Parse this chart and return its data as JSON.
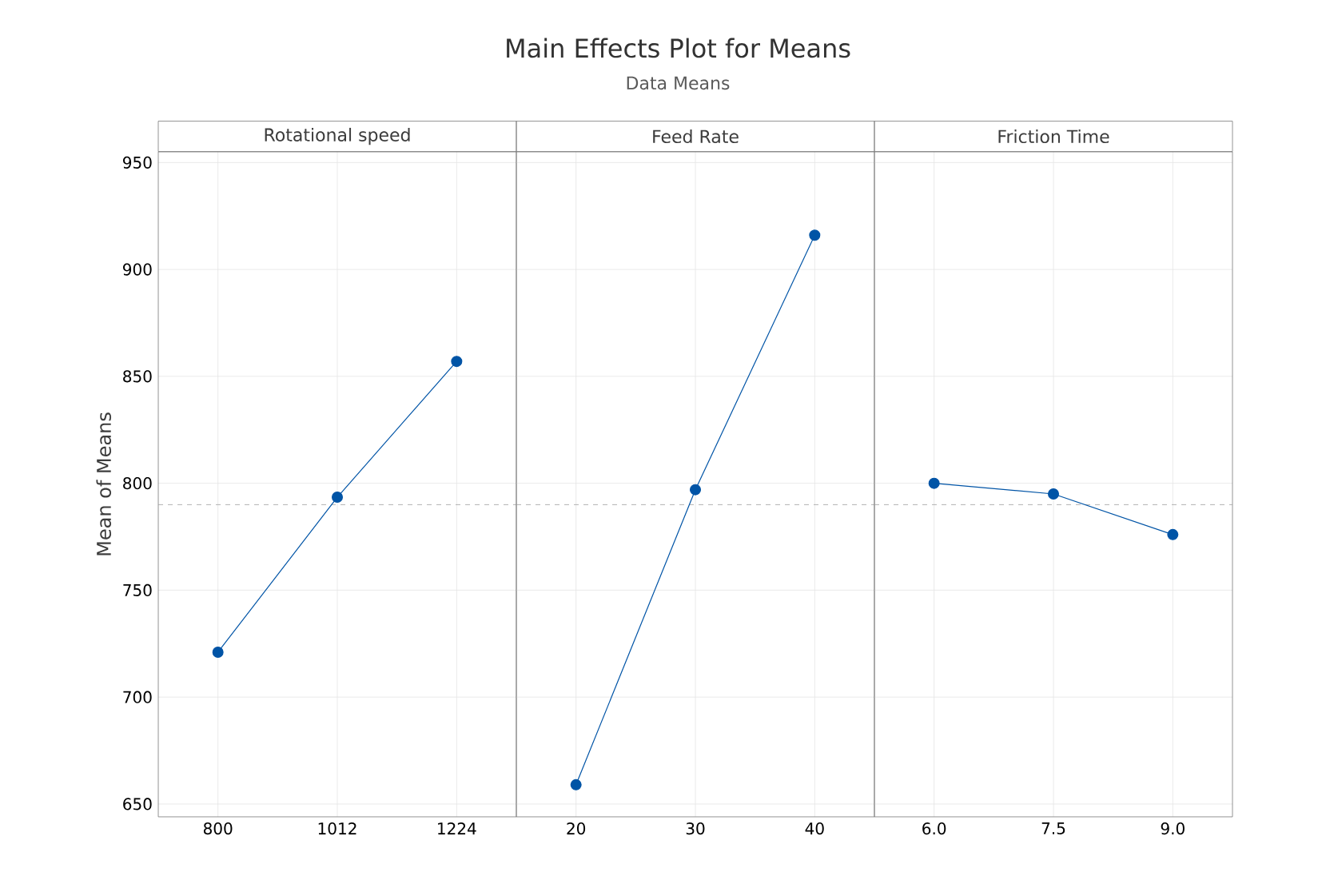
{
  "chart_data": [
    {
      "type": "line",
      "title": "Rotational speed",
      "annotations": [
        "Main Effects Plot for Means",
        "Data Means"
      ],
      "ylabel": "Mean of Means",
      "categories": [
        "800",
        "1012",
        "1224"
      ],
      "series": [
        {
          "color": "#0054a6",
          "values": [
            721,
            793.5,
            857
          ]
        }
      ],
      "ylim": [
        644,
        955
      ],
      "yticks": [
        650,
        700,
        750,
        800,
        850,
        900,
        950
      ],
      "grid": true,
      "marker": "circle",
      "line_style": "solid",
      "ref_lines": [
        {
          "axis": "y",
          "value": 790,
          "color": "#a0a0a0",
          "line_style": "dashed"
        }
      ]
    },
    {
      "type": "line",
      "title": "Feed Rate",
      "categories": [
        "20",
        "30",
        "40"
      ],
      "series": [
        {
          "color": "#0054a6",
          "values": [
            659,
            797,
            916
          ]
        }
      ],
      "ylim": [
        644,
        955
      ],
      "yticks": [
        650,
        700,
        750,
        800,
        850,
        900,
        950
      ],
      "grid": true,
      "marker": "circle",
      "line_style": "solid",
      "tick_labels": "x",
      "ref_lines": [
        {
          "axis": "y",
          "value": 790,
          "color": "#a0a0a0",
          "line_style": "dashed"
        }
      ]
    },
    {
      "type": "line",
      "title": "Friction Time",
      "categories": [
        "6.0",
        "7.5",
        "9.0"
      ],
      "series": [
        {
          "color": "#0054a6",
          "values": [
            800,
            795,
            776
          ]
        }
      ],
      "ylim": [
        644,
        955
      ],
      "yticks": [
        650,
        700,
        750,
        800,
        850,
        900,
        950
      ],
      "grid": true,
      "marker": "circle",
      "line_style": "solid",
      "tick_labels": "x",
      "ref_lines": [
        {
          "axis": "y",
          "value": 790,
          "color": "#a0a0a0",
          "line_style": "dashed"
        }
      ]
    }
  ]
}
